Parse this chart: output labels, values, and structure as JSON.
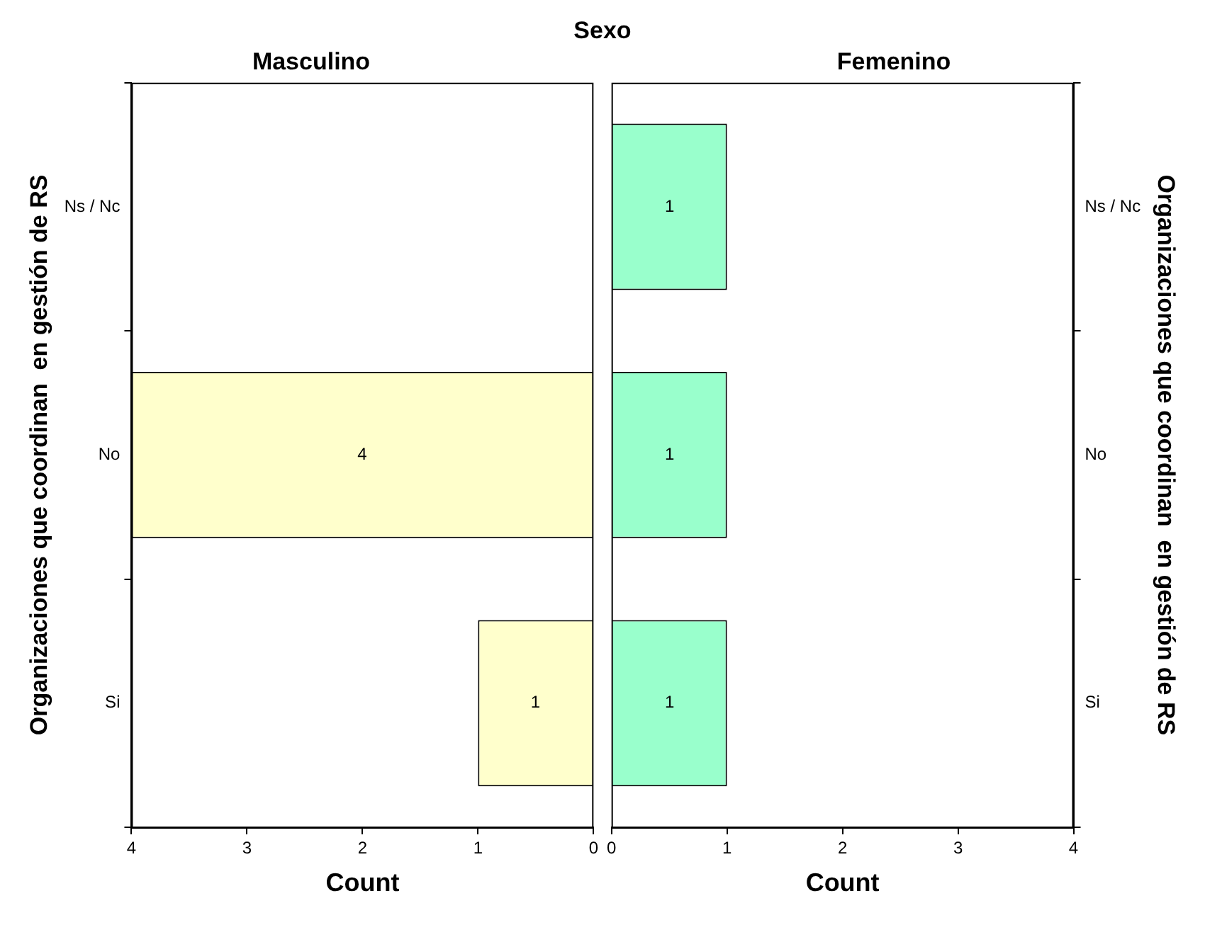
{
  "chart_data": [
    {
      "type": "bar",
      "orientation": "horizontal",
      "title": "Masculino",
      "annotations": [
        "Sexo"
      ],
      "xlabel": "Count",
      "ylabel": "Organizaciones que coordinan  en gestión de RS",
      "categories": [
        "Ns / Nc",
        "No",
        "Si"
      ],
      "series": [
        {
          "color": "#ffffcc",
          "values": [
            null,
            4,
            1
          ]
        }
      ],
      "xlim": [
        4,
        0
      ],
      "xticks": [
        4,
        3,
        2,
        1,
        0
      ],
      "grid": false,
      "legend": false,
      "data_labels": true
    },
    {
      "type": "bar",
      "orientation": "horizontal",
      "title": "Femenino",
      "xlabel": "Count",
      "ylabel": "Organizaciones que coordinan  en gestión de RS",
      "categories": [
        "Ns / Nc",
        "No",
        "Si"
      ],
      "series": [
        {
          "color": "#99ffcc",
          "values": [
            1,
            1,
            1
          ]
        }
      ],
      "xlim": [
        0,
        4
      ],
      "xticks": [
        0,
        1,
        2,
        3,
        4
      ],
      "grid": false,
      "legend": false,
      "data_labels": true
    }
  ]
}
